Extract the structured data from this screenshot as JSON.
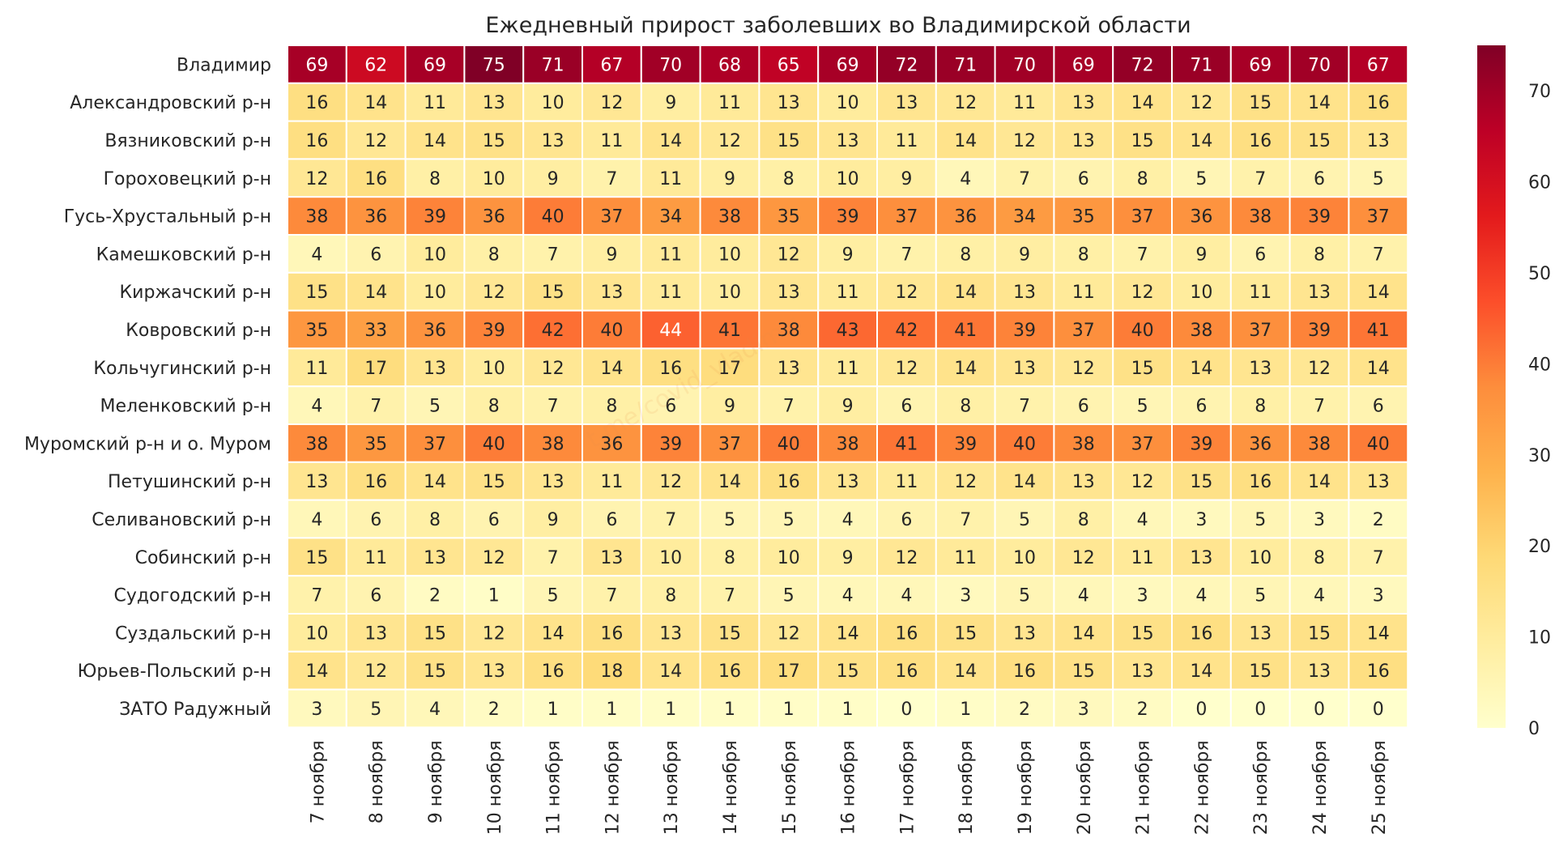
{
  "chart_data": {
    "type": "heatmap",
    "title": "Ежедневный прирост заболевших во Владимирской области",
    "watermark": "t.me/covid_vladimir",
    "xlabel": "",
    "ylabel": "",
    "columns": [
      "7 ноября",
      "8 ноября",
      "9 ноября",
      "10 ноября",
      "11 ноября",
      "12 ноября",
      "13 ноября",
      "14 ноября",
      "15 ноября",
      "16 ноября",
      "17 ноября",
      "18 ноября",
      "19 ноября",
      "20 ноября",
      "21 ноября",
      "22 ноября",
      "23 ноября",
      "24 ноября",
      "25 ноября"
    ],
    "rows": [
      {
        "name": "Владимир",
        "values": [
          69,
          62,
          69,
          75,
          71,
          67,
          70,
          68,
          65,
          69,
          72,
          71,
          70,
          69,
          72,
          71,
          69,
          70,
          67
        ]
      },
      {
        "name": "Александровский р-н",
        "values": [
          16,
          14,
          11,
          13,
          10,
          12,
          9,
          11,
          13,
          10,
          13,
          12,
          11,
          13,
          14,
          12,
          15,
          14,
          16
        ]
      },
      {
        "name": "Вязниковский р-н",
        "values": [
          16,
          12,
          14,
          15,
          13,
          11,
          14,
          12,
          15,
          13,
          11,
          14,
          12,
          13,
          15,
          14,
          16,
          15,
          13
        ]
      },
      {
        "name": "Гороховецкий р-н",
        "values": [
          12,
          16,
          8,
          10,
          9,
          7,
          11,
          9,
          8,
          10,
          9,
          4,
          7,
          6,
          8,
          5,
          7,
          6,
          5
        ]
      },
      {
        "name": "Гусь-Хрустальный р-н",
        "values": [
          38,
          36,
          39,
          36,
          40,
          37,
          34,
          38,
          35,
          39,
          37,
          36,
          34,
          35,
          37,
          36,
          38,
          39,
          37
        ]
      },
      {
        "name": "Камешковский р-н",
        "values": [
          4,
          6,
          10,
          8,
          7,
          9,
          11,
          10,
          12,
          9,
          7,
          8,
          9,
          8,
          7,
          9,
          6,
          8,
          7
        ]
      },
      {
        "name": "Киржачский р-н",
        "values": [
          15,
          14,
          10,
          12,
          15,
          13,
          11,
          10,
          13,
          11,
          12,
          14,
          13,
          11,
          12,
          10,
          11,
          13,
          14
        ]
      },
      {
        "name": "Ковровский р-н",
        "values": [
          35,
          33,
          36,
          39,
          42,
          40,
          44,
          41,
          38,
          43,
          42,
          41,
          39,
          37,
          40,
          38,
          37,
          39,
          41
        ]
      },
      {
        "name": "Кольчугинский р-н",
        "values": [
          11,
          17,
          13,
          10,
          12,
          14,
          16,
          17,
          13,
          11,
          12,
          14,
          13,
          12,
          15,
          14,
          13,
          12,
          14
        ]
      },
      {
        "name": "Меленковский р-н",
        "values": [
          4,
          7,
          5,
          8,
          7,
          8,
          6,
          9,
          7,
          9,
          6,
          8,
          7,
          6,
          5,
          6,
          8,
          7,
          6
        ]
      },
      {
        "name": "Муромский р-н и о. Муром",
        "values": [
          38,
          35,
          37,
          40,
          38,
          36,
          39,
          37,
          40,
          38,
          41,
          39,
          40,
          38,
          37,
          39,
          36,
          38,
          40
        ]
      },
      {
        "name": "Петушинский р-н",
        "values": [
          13,
          16,
          14,
          15,
          13,
          11,
          12,
          14,
          16,
          13,
          11,
          12,
          14,
          13,
          12,
          15,
          16,
          14,
          13
        ]
      },
      {
        "name": "Селивановский р-н",
        "values": [
          4,
          6,
          8,
          6,
          9,
          6,
          7,
          5,
          5,
          4,
          6,
          7,
          5,
          8,
          4,
          3,
          5,
          3,
          2
        ]
      },
      {
        "name": "Собинский р-н",
        "values": [
          15,
          11,
          13,
          12,
          7,
          13,
          10,
          8,
          10,
          9,
          12,
          11,
          10,
          12,
          11,
          13,
          10,
          8,
          7
        ]
      },
      {
        "name": "Судогодский р-н",
        "values": [
          7,
          6,
          2,
          1,
          5,
          7,
          8,
          7,
          5,
          4,
          4,
          3,
          5,
          4,
          3,
          4,
          5,
          4,
          3
        ]
      },
      {
        "name": "Суздальский р-н",
        "values": [
          10,
          13,
          15,
          12,
          14,
          16,
          13,
          15,
          12,
          14,
          16,
          15,
          13,
          14,
          15,
          16,
          13,
          15,
          14
        ]
      },
      {
        "name": "Юрьев-Польский р-н",
        "values": [
          14,
          12,
          15,
          13,
          16,
          18,
          14,
          16,
          17,
          15,
          16,
          14,
          16,
          15,
          13,
          14,
          15,
          13,
          16
        ]
      },
      {
        "name": "ЗАТО Радужный",
        "values": [
          3,
          5,
          4,
          2,
          1,
          1,
          1,
          1,
          1,
          1,
          0,
          1,
          2,
          3,
          2,
          0,
          0,
          0,
          0
        ]
      }
    ],
    "colorbar": {
      "min": 0,
      "max": 75,
      "ticks": [
        0,
        10,
        20,
        30,
        40,
        50,
        60,
        70
      ],
      "colormap": "YlOrRd",
      "stops": [
        "#ffffcc",
        "#ffeda0",
        "#fed976",
        "#feb24c",
        "#fd8d3c",
        "#fc4e2a",
        "#e31a1c",
        "#bd0026",
        "#800026"
      ]
    },
    "text_color_dark": "#262626",
    "text_color_light": "#ffffff"
  }
}
